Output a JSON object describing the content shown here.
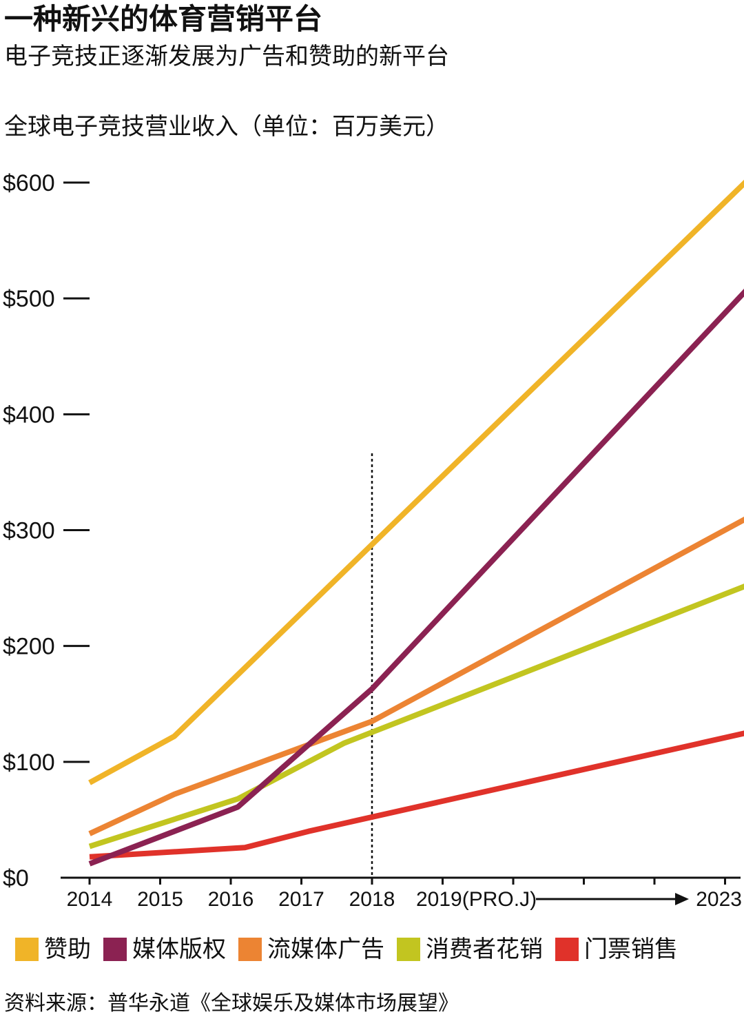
{
  "header": {
    "title": "一种新兴的体育营销平台",
    "subtitle": "电子竞技正逐渐发展为广告和赞助的新平台",
    "chart_label": "全球电子竞技营业收入（单位：百万美元）"
  },
  "legend": [
    {
      "label": "赞助",
      "color": "#F0B428"
    },
    {
      "label": "媒体版权",
      "color": "#8B2252"
    },
    {
      "label": "流媒体广告",
      "color": "#EC8433"
    },
    {
      "label": "消费者花销",
      "color": "#C2C520"
    },
    {
      "label": "门票销售",
      "color": "#E0322A"
    }
  ],
  "source": "资料来源：普华永道《全球娱乐及媒体市场展望》",
  "chart_data": {
    "type": "line",
    "title": "全球电子竞技营业收入（单位：百万美元）",
    "ylim": [
      0,
      600
    ],
    "y_ticks": [
      0,
      100,
      200,
      300,
      400,
      500,
      600
    ],
    "y_tick_labels": [
      "$0",
      "$100",
      "$200",
      "$300",
      "$400",
      "$500",
      "$600"
    ],
    "x_tick_labels": [
      "2014",
      "2015",
      "2016",
      "2017",
      "2018",
      "2019(PRO.J)",
      "2023"
    ],
    "x_axis_arrow": true,
    "projection_divider_at": 2018,
    "grid": false,
    "legend_position": "bottom",
    "series": [
      {
        "name": "赞助",
        "color": "#F0B428",
        "x": [
          2014,
          2015.2,
          2023.3
        ],
        "y": [
          82,
          122,
          601
        ]
      },
      {
        "name": "媒体版权",
        "color": "#8B2252",
        "x": [
          2014,
          2016.1,
          2018,
          2023.3
        ],
        "y": [
          12,
          61,
          163,
          507
        ]
      },
      {
        "name": "流媒体广告",
        "color": "#EC8433",
        "x": [
          2014,
          2015.2,
          2018,
          2023.3
        ],
        "y": [
          38,
          72,
          135,
          310
        ]
      },
      {
        "name": "消费者花销",
        "color": "#C2C520",
        "x": [
          2014,
          2016.1,
          2017.6,
          2023.3
        ],
        "y": [
          27,
          68,
          116,
          252
        ]
      },
      {
        "name": "门票销售",
        "color": "#E0322A",
        "x": [
          2014,
          2016.2,
          2017.1,
          2023.3
        ],
        "y": [
          18,
          26,
          40,
          125
        ]
      }
    ]
  }
}
